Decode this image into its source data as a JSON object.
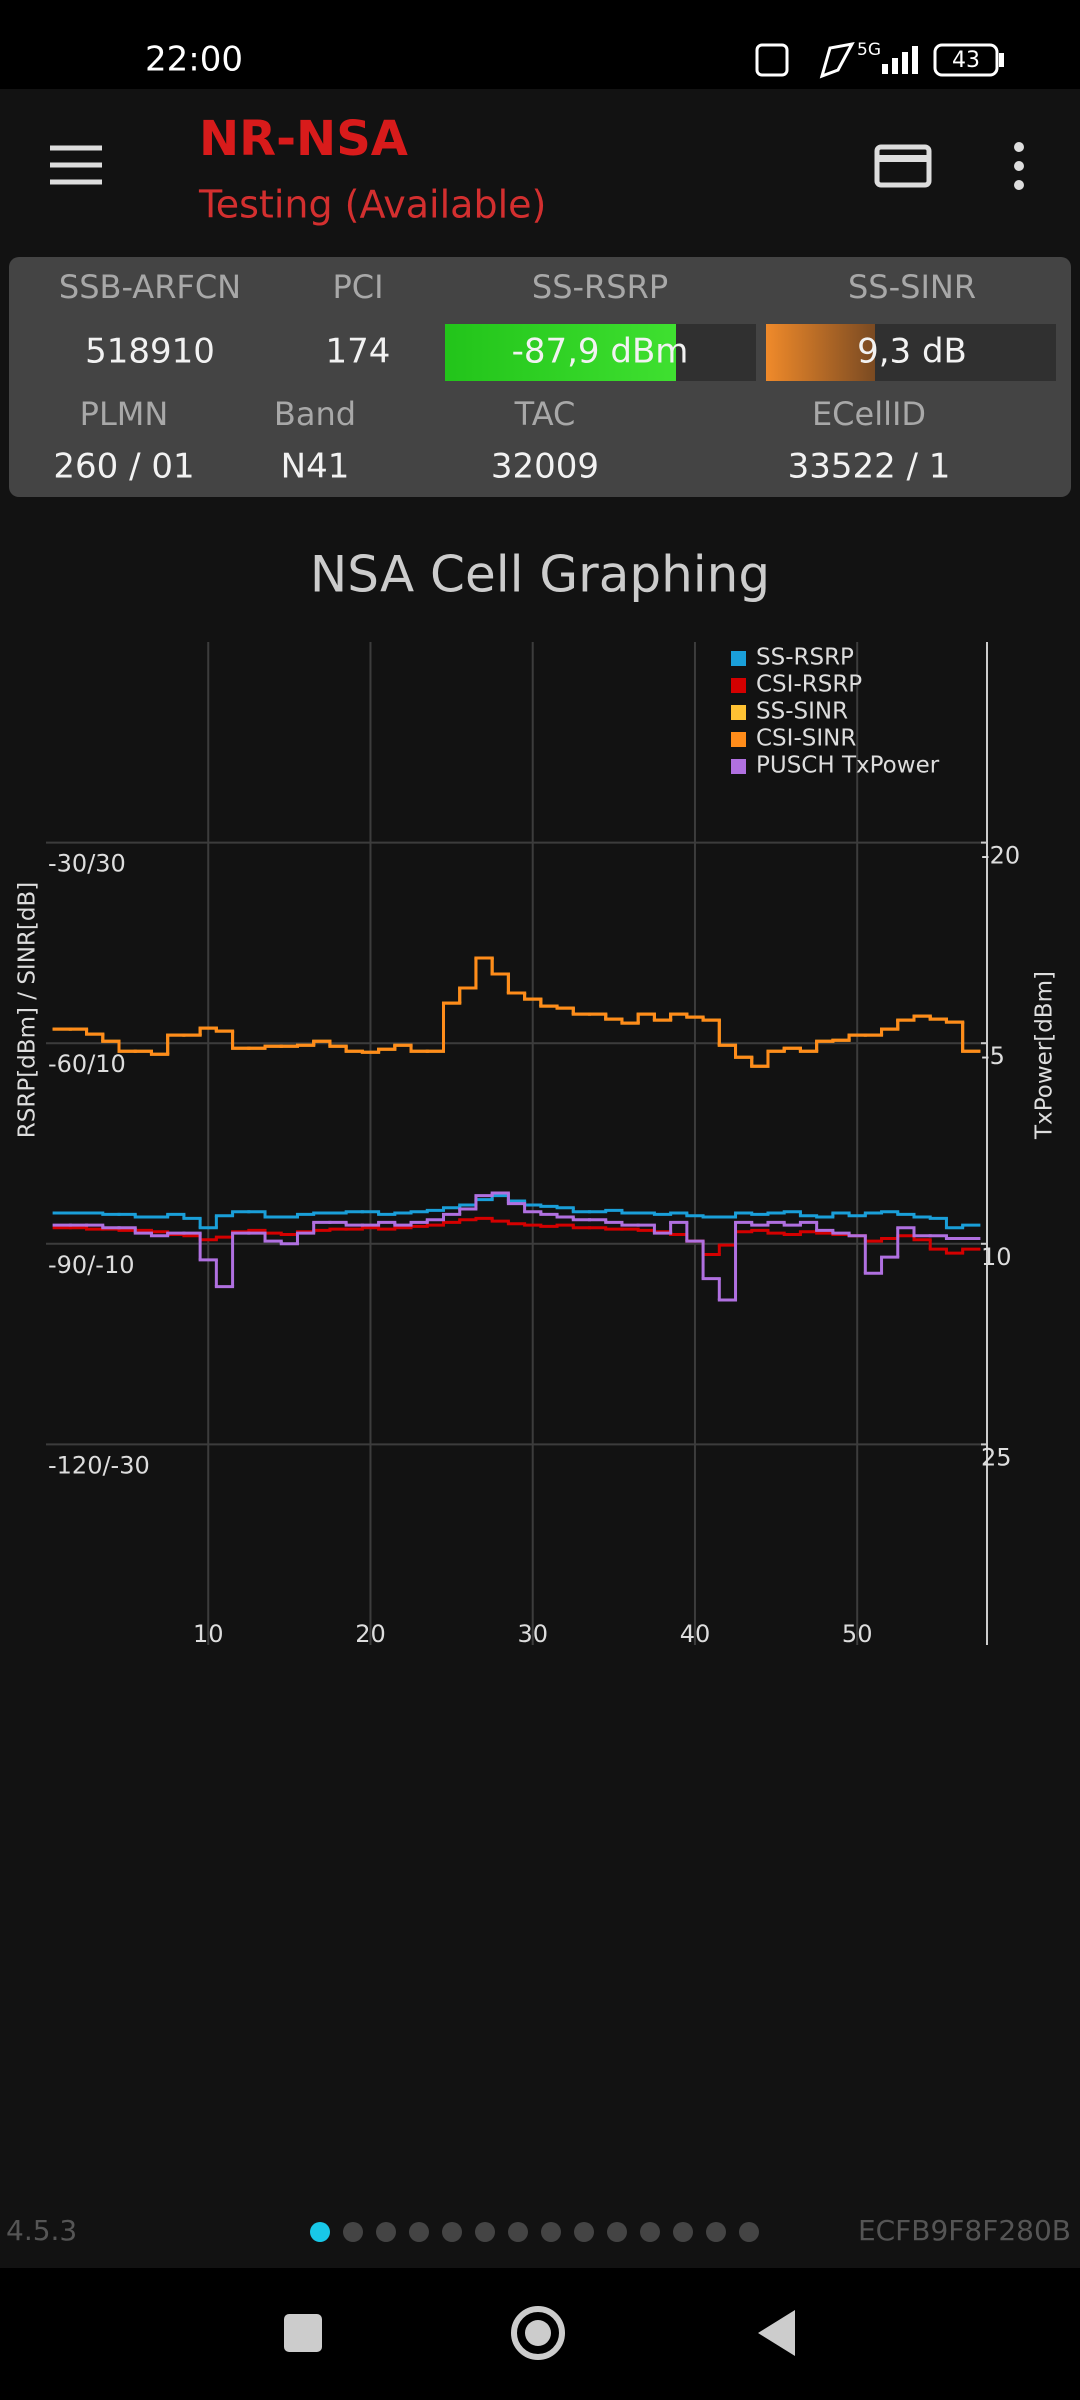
{
  "status_bar": {
    "time": "22:00",
    "network": "5G",
    "battery": "43"
  },
  "app_bar": {
    "title": "NR-NSA",
    "subtitle": "Testing (Available)"
  },
  "cell_info": {
    "headers_1": [
      "SSB-ARFCN",
      "PCI",
      "SS-RSRP",
      "SS-SINR"
    ],
    "values_1": [
      "518910",
      "174",
      "-87,9 dBm",
      "9,3 dB"
    ],
    "headers_2": [
      "PLMN",
      "Band",
      "TAC",
      "ECellID"
    ],
    "values_2": [
      "260 / 01",
      "N41",
      "32009",
      "33522 / 1"
    ]
  },
  "chart_data": {
    "type": "line",
    "title": "NSA Cell Graphing",
    "y_label": "RSRP[dBm] / SINR[dB]",
    "y2_label": "TxPower[dBm]",
    "x": [
      1,
      2,
      3,
      4,
      5,
      6,
      7,
      8,
      9,
      10,
      11,
      12,
      13,
      14,
      15,
      16,
      17,
      18,
      19,
      20,
      21,
      22,
      23,
      24,
      25,
      26,
      27,
      28,
      29,
      30,
      31,
      32,
      33,
      34,
      35,
      36,
      37,
      38,
      39,
      40,
      41,
      42,
      43,
      44,
      45,
      46,
      47,
      48,
      49,
      50,
      51,
      52,
      53,
      54,
      55,
      56,
      57
    ],
    "xlim": [
      0,
      58
    ],
    "xticks": [
      10,
      20,
      30,
      40,
      50
    ],
    "ylim": [
      -150,
      0
    ],
    "yticks": [
      {
        "value": -120,
        "label": "-120/-30"
      },
      {
        "value": -90,
        "label": "-90/-10"
      },
      {
        "value": -60,
        "label": "-60/10"
      },
      {
        "value": -30,
        "label": "-30/30"
      }
    ],
    "y_sinr_lim": [
      -50,
      50
    ],
    "y2lim": [
      -35,
      40
    ],
    "y2_inverted": true,
    "y2ticks": [
      -20,
      -5,
      10,
      25
    ],
    "grid": true,
    "step": true,
    "legend": "top-right",
    "series": [
      {
        "name": "SS-RSRP",
        "color": "#1a9fd9",
        "axis": "y",
        "values": [
          -85.4,
          -85.4,
          -85.4,
          -85.6,
          -85.6,
          -86.0,
          -86.0,
          -85.6,
          -86.2,
          -87.6,
          -85.8,
          -85.2,
          -85.2,
          -86.0,
          -86.0,
          -85.6,
          -85.4,
          -85.4,
          -85.2,
          -85.2,
          -85.6,
          -85.4,
          -85.2,
          -85.0,
          -84.6,
          -84.2,
          -83.4,
          -82.8,
          -83.6,
          -84.2,
          -84.4,
          -84.6,
          -85.2,
          -85.2,
          -85.0,
          -85.4,
          -85.4,
          -85.6,
          -85.4,
          -85.8,
          -86.0,
          -86.0,
          -85.4,
          -85.6,
          -85.4,
          -85.2,
          -85.8,
          -86.0,
          -85.4,
          -85.8,
          -85.4,
          -85.2,
          -85.6,
          -86.0,
          -86.2,
          -87.6,
          -87.2
        ]
      },
      {
        "name": "CSI-RSRP",
        "color": "#d40000",
        "axis": "y",
        "values": [
          -87.6,
          -87.6,
          -87.8,
          -87.8,
          -88.0,
          -88.0,
          -88.2,
          -88.6,
          -88.8,
          -89.4,
          -89.0,
          -88.2,
          -88.0,
          -88.4,
          -88.6,
          -88.2,
          -88.0,
          -87.8,
          -87.8,
          -87.6,
          -87.8,
          -87.6,
          -87.4,
          -87.2,
          -86.8,
          -86.4,
          -86.2,
          -86.6,
          -87.0,
          -87.2,
          -87.4,
          -87.2,
          -87.6,
          -87.6,
          -87.8,
          -87.8,
          -88.0,
          -88.2,
          -88.6,
          -89.6,
          -91.6,
          -90.2,
          -88.2,
          -88.0,
          -88.4,
          -88.6,
          -88.2,
          -88.4,
          -88.6,
          -88.8,
          -89.6,
          -89.2,
          -88.8,
          -89.4,
          -90.8,
          -91.4,
          -90.8
        ]
      },
      {
        "name": "SS-SINR",
        "color": "#ffc233",
        "axis": "y_sinr",
        "values": [
          11.4,
          11.4,
          10.9,
          10.2,
          9.2,
          9.2,
          8.9,
          10.8,
          10.8,
          11.5,
          11.2,
          9.5,
          9.5,
          9.7,
          9.7,
          9.8,
          10.2,
          9.7,
          9.2,
          9.1,
          9.4,
          9.8,
          9.2,
          9.2,
          14.0,
          15.5,
          18.5,
          16.9,
          15.0,
          14.4,
          13.7,
          13.5,
          12.9,
          12.9,
          12.4,
          12.0,
          12.9,
          12.3,
          12.9,
          12.6,
          12.3,
          9.8,
          8.6,
          7.7,
          9.2,
          9.5,
          9.2,
          10.2,
          10.3,
          10.8,
          10.8,
          11.4,
          12.3,
          12.7,
          12.4,
          12.1,
          9.2
        ]
      },
      {
        "name": "CSI-SINR",
        "color": "#ff8c1a",
        "axis": "y_sinr",
        "values": [
          11.4,
          11.4,
          10.9,
          10.2,
          9.2,
          9.2,
          8.9,
          10.8,
          10.8,
          11.5,
          11.2,
          9.5,
          9.5,
          9.7,
          9.7,
          9.8,
          10.2,
          9.7,
          9.2,
          9.1,
          9.4,
          9.8,
          9.2,
          9.2,
          14.0,
          15.5,
          18.5,
          16.9,
          15.0,
          14.4,
          13.7,
          13.5,
          12.9,
          12.9,
          12.4,
          12.0,
          12.9,
          12.3,
          12.9,
          12.6,
          12.3,
          9.8,
          8.6,
          7.7,
          9.2,
          9.5,
          9.2,
          10.2,
          10.3,
          10.8,
          10.8,
          11.4,
          12.3,
          12.7,
          12.4,
          12.1,
          9.2
        ]
      },
      {
        "name": "PUSCH TxPower",
        "color": "#b070e0",
        "axis": "y2",
        "values": [
          8.6,
          8.6,
          8.6,
          8.8,
          8.8,
          9.2,
          9.4,
          9.2,
          9.2,
          11.2,
          13.2,
          9.2,
          9.2,
          9.8,
          10.0,
          9.2,
          8.4,
          8.4,
          8.6,
          8.6,
          8.4,
          8.6,
          8.4,
          8.2,
          7.8,
          7.4,
          6.4,
          6.2,
          7.0,
          7.6,
          7.8,
          8.0,
          8.2,
          8.2,
          8.4,
          8.6,
          8.6,
          9.2,
          8.4,
          9.8,
          12.6,
          14.2,
          8.4,
          8.6,
          8.4,
          8.6,
          8.4,
          9.0,
          9.2,
          9.4,
          12.2,
          11.0,
          8.8,
          9.4,
          9.4,
          9.6,
          9.6
        ]
      }
    ]
  },
  "footer": {
    "version": "4.5.3",
    "device_id": "ECFB9F8F280B"
  }
}
